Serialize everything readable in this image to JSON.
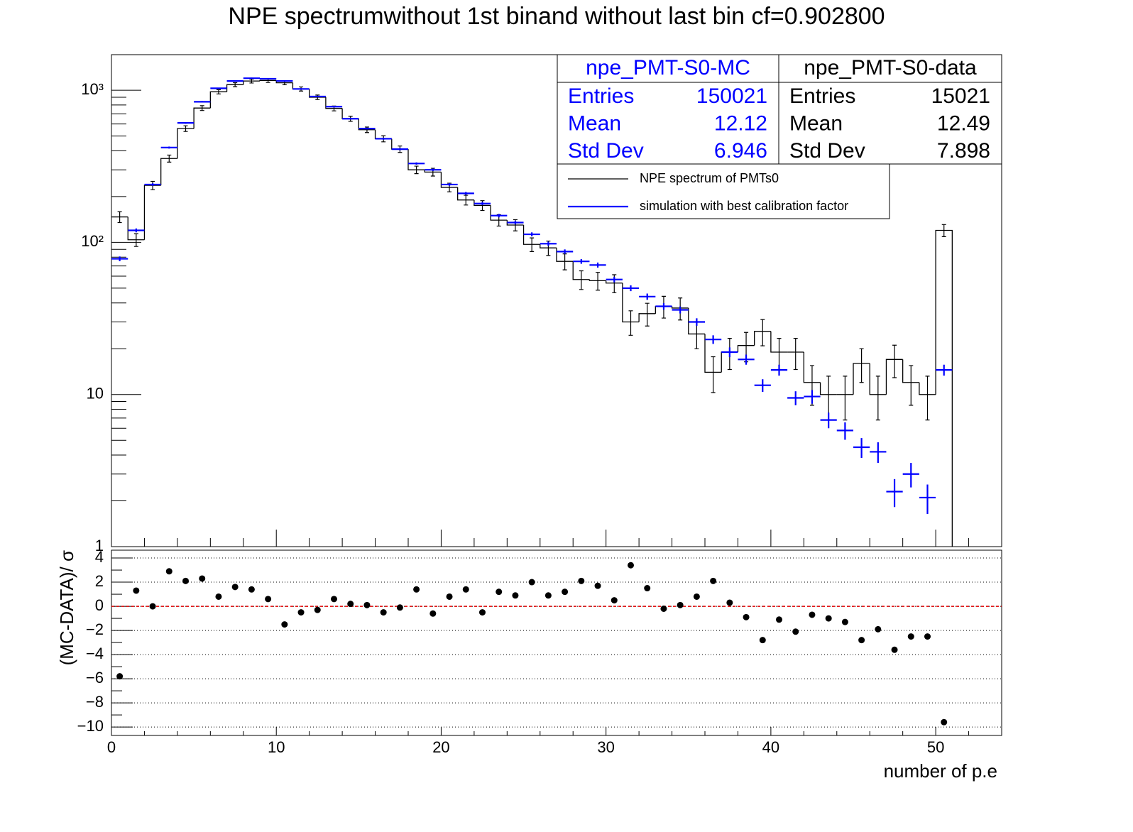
{
  "chart_data": [
    {
      "type": "histogram",
      "title": "NPE spectrumwithout 1st binand without last bin cf=0.902800",
      "bins": [
        0,
        1,
        2,
        3,
        4,
        5,
        6,
        7,
        8,
        9,
        10,
        11,
        12,
        13,
        14,
        15,
        16,
        17,
        18,
        19,
        20,
        21,
        22,
        23,
        24,
        25,
        26,
        27,
        28,
        29,
        30,
        31,
        32,
        33,
        34,
        35,
        36,
        37,
        38,
        39,
        40,
        41,
        42,
        43,
        44,
        45,
        46,
        47,
        48,
        49,
        50,
        51
      ],
      "series": [
        {
          "name": "NPE spectrum of PMTs0",
          "color": "#000000",
          "values": [
            147,
            104,
            237,
            356,
            560,
            764,
            977,
            1088,
            1150,
            1160,
            1120,
            1020,
            900,
            760,
            650,
            550,
            480,
            410,
            300,
            290,
            230,
            190,
            175,
            140,
            130,
            97,
            92,
            75,
            57,
            56,
            54,
            30,
            34,
            38,
            37,
            25,
            14,
            19,
            21,
            26,
            19,
            19,
            12,
            10,
            10,
            16,
            10,
            17,
            12,
            10,
            120
          ],
          "errors": [
            12,
            10,
            15,
            19,
            24,
            28,
            31,
            33,
            34,
            34,
            33,
            32,
            30,
            28,
            25,
            23,
            22,
            20,
            17,
            17,
            15,
            14,
            13,
            12,
            11,
            10,
            10,
            9,
            8,
            7.5,
            7.3,
            5.5,
            5.8,
            6.2,
            6.1,
            5,
            3.7,
            4.4,
            4.6,
            5.1,
            4.4,
            4.4,
            3.5,
            3.2,
            3.2,
            4,
            3.2,
            4.1,
            3.5,
            3.2,
            11
          ]
        },
        {
          "name": "simulation with best calibration factor",
          "color": "#0000ff",
          "values": [
            78,
            120,
            240,
            420,
            610,
            840,
            1030,
            1150,
            1200,
            1190,
            1150,
            1020,
            910,
            780,
            650,
            560,
            480,
            410,
            330,
            300,
            240,
            210,
            180,
            150,
            135,
            113,
            98,
            87,
            75,
            71,
            57,
            50,
            44,
            38,
            36,
            30,
            23,
            19,
            17,
            11.5,
            14.5,
            9.5,
            9.7,
            6.8,
            5.8,
            4.5,
            4.2,
            2.3,
            3.0,
            2.1,
            14.5
          ],
          "errors": [
            2.8,
            3.5,
            4.9,
            6.5,
            7.8,
            9.2,
            10,
            10.7,
            11,
            10.9,
            10.7,
            10,
            9.5,
            8.8,
            8.1,
            7.5,
            6.9,
            6.4,
            5.7,
            5.5,
            4.9,
            4.6,
            4.2,
            3.9,
            3.7,
            3.4,
            3.1,
            2.9,
            2.7,
            2.7,
            2.4,
            2.2,
            2.1,
            1.9,
            1.9,
            1.7,
            1.5,
            1.4,
            1.3,
            1.1,
            1.2,
            1,
            1,
            0.8,
            0.76,
            0.67,
            0.65,
            0.48,
            0.55,
            0.46,
            1.2
          ]
        }
      ],
      "xlim": [
        0,
        54
      ],
      "xticks": [
        0,
        10,
        20,
        30,
        40,
        50
      ],
      "ylim": [
        1,
        1714
      ],
      "log_y": true,
      "yticks": [
        {
          "value": 1,
          "label": "1"
        },
        {
          "value": 10,
          "label": "10"
        },
        {
          "value": 100,
          "label": "10²"
        },
        {
          "value": 1000,
          "label": "10³"
        }
      ],
      "stats": [
        {
          "title": "npe_PMT-S0-MC",
          "color": "#0000ff",
          "rows": [
            {
              "label": "Entries",
              "value": 150021
            },
            {
              "label": "Mean",
              "value": 12.12
            },
            {
              "label": "Std Dev",
              "value": 6.946
            }
          ]
        },
        {
          "title": "npe_PMT-S0-data",
          "color": "#000000",
          "rows": [
            {
              "label": "Entries",
              "value": 15021
            },
            {
              "label": "Mean",
              "value": 12.49
            },
            {
              "label": "Std Dev",
              "value": 7.898
            }
          ]
        }
      ]
    },
    {
      "type": "scatter",
      "x_label": "number of p.e",
      "y_label": "(MC-DATA)/ σ",
      "x": [
        0.5,
        1.5,
        2.5,
        3.5,
        4.5,
        5.5,
        6.5,
        7.5,
        8.5,
        9.5,
        10.5,
        11.5,
        12.5,
        13.5,
        14.5,
        15.5,
        16.5,
        17.5,
        18.5,
        19.5,
        20.5,
        21.5,
        22.5,
        23.5,
        24.5,
        25.5,
        26.5,
        27.5,
        28.5,
        29.5,
        30.5,
        31.5,
        32.5,
        33.5,
        34.5,
        35.5,
        36.5,
        37.5,
        38.5,
        39.5,
        40.5,
        41.5,
        42.5,
        43.5,
        44.5,
        45.5,
        46.5,
        47.5,
        48.5,
        49.5,
        50.5
      ],
      "values": [
        -5.8,
        1.3,
        0,
        2.9,
        2.1,
        2.3,
        0.8,
        1.6,
        1.4,
        0.6,
        -1.5,
        -0.5,
        -0.3,
        0.6,
        0.2,
        0.1,
        -0.5,
        -0.1,
        1.4,
        -0.6,
        0.8,
        1.4,
        -0.5,
        1.2,
        0.9,
        2.0,
        0.9,
        1.2,
        2.1,
        1.7,
        0.5,
        3.4,
        1.5,
        -0.2,
        0.1,
        0.8,
        2.1,
        0.3,
        -0.9,
        -2.8,
        -1.1,
        -2.1,
        -0.7,
        -1.0,
        -1.3,
        -2.8,
        -1.9,
        -3.6,
        -2.5,
        -2.5,
        -9.6
      ],
      "color": "#000000",
      "xlim": [
        0,
        54
      ],
      "xticks": [
        0,
        10,
        20,
        30,
        40,
        50
      ],
      "ylim": [
        -10.7,
        4.65
      ],
      "yticks": [
        {
          "value": -10,
          "label": "−10"
        },
        {
          "value": -8,
          "label": "−8"
        },
        {
          "value": -6,
          "label": "−6"
        },
        {
          "value": -4,
          "label": "−4"
        },
        {
          "value": -2,
          "label": "−2"
        },
        0,
        2,
        4
      ],
      "grid": true
    }
  ]
}
